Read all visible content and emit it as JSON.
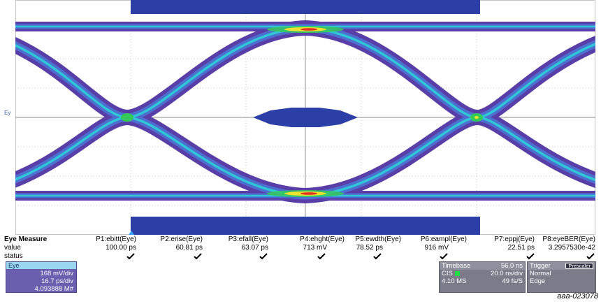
{
  "display": {
    "eye_level_label": "Ey",
    "colors": {
      "background": "#ffffff",
      "grid": "#b0b0b0",
      "mask": "#2b3fa6",
      "trace_outer": "#5a3ea8",
      "trace_mid": "#4d6fd0",
      "trace_inner": "#2fc6d6",
      "hot_green": "#35c95a",
      "hot_yellow": "#f0e030",
      "hot_red": "#e03020"
    }
  },
  "measurements": {
    "title": "Eye Measure",
    "row_labels": {
      "value": "value",
      "status": "status"
    },
    "params": [
      {
        "name": "P1:ebitt(Eye)",
        "value": "100.00 ps",
        "status": "check"
      },
      {
        "name": "P2:erise(Eye)",
        "value": "60.81 ps",
        "status": "check"
      },
      {
        "name": "P3:efall(Eye)",
        "value": "63.07 ps",
        "status": "check"
      },
      {
        "name": "P4:ehght(Eye)",
        "value": "713 mV",
        "status": "check"
      },
      {
        "name": "P5:ewdth(Eye)",
        "value": "78.52 ps",
        "status": "check"
      },
      {
        "name": "P6:eampl(Eye)",
        "value": "916 mV",
        "status": "check"
      },
      {
        "name": "P7:eppj(Eye)",
        "value": "22.51 ps",
        "status": "check"
      },
      {
        "name": "P8:eyeBER(Eye)",
        "value": "3.2957530e-42",
        "status": "check"
      }
    ]
  },
  "eye_box": {
    "title": "Eye",
    "vdiv": "168 mV/div",
    "hdiv": "16.7 ps/div",
    "count": "4.093888 M#"
  },
  "timebase": {
    "label": "Timebase",
    "value": "56.0 ns",
    "mode": "CIS",
    "tdiv": "20.0 ns/div",
    "samples": "4.10 MS",
    "rate": "49 fs/S"
  },
  "trigger": {
    "label": "Trigger",
    "badge": "Prescaler",
    "mode": "Normal",
    "type": "Edge"
  },
  "figure_id": "aaa-023078"
}
